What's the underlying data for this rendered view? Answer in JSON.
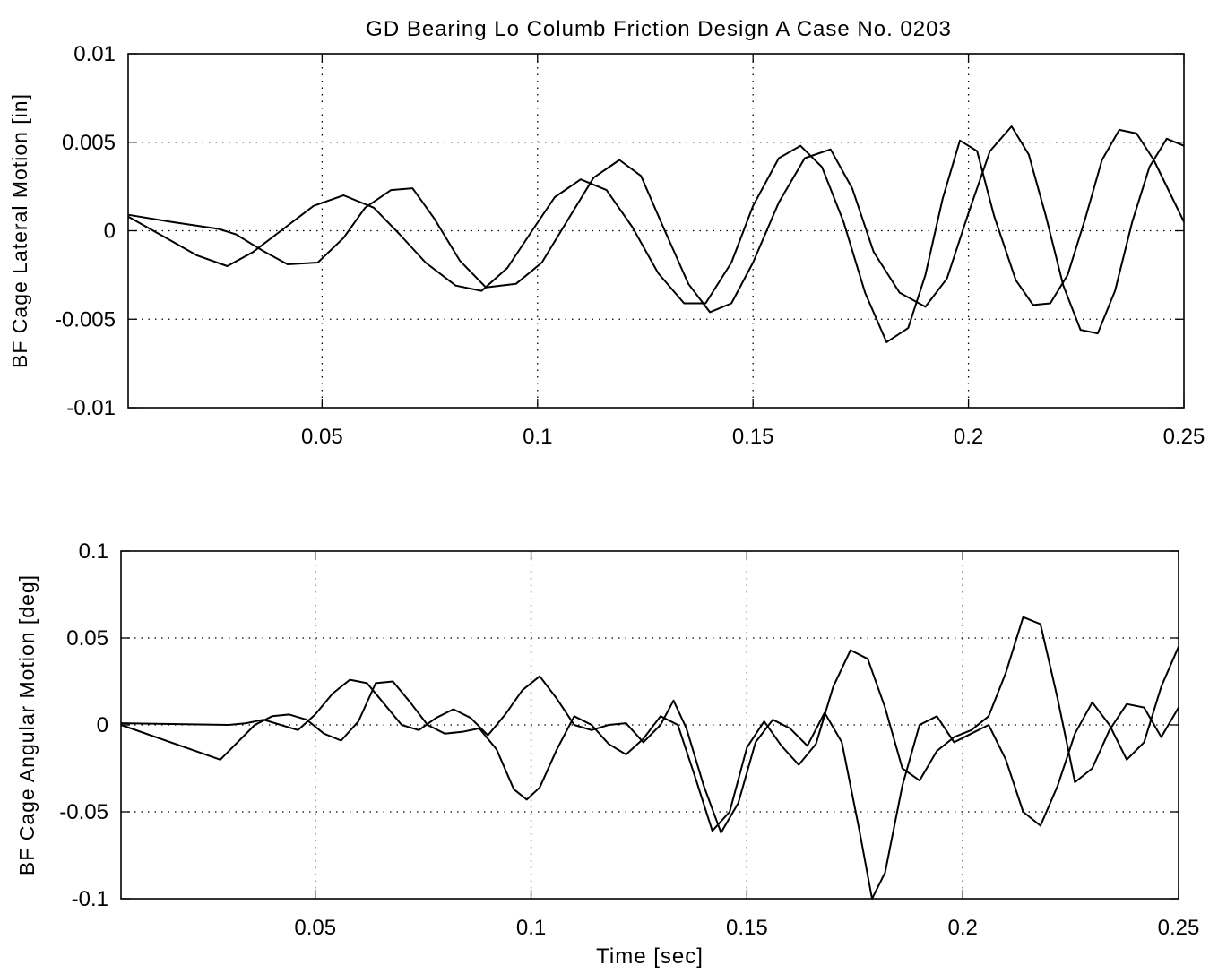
{
  "figure_title": "GD Bearing Lo Columb Friction Design A Case No. 0203",
  "chart_data": [
    {
      "type": "line",
      "title": "GD Bearing Lo Columb Friction Design A Case No. 0203",
      "xlabel": "",
      "ylabel": "BF Cage Lateral Motion [in]",
      "xlim": [
        0.005,
        0.25
      ],
      "ylim": [
        -0.01,
        0.01
      ],
      "x_ticks": [
        0.05,
        0.1,
        0.15,
        0.2,
        0.25
      ],
      "x_tick_labels": [
        "0.05",
        "0.1",
        "0.15",
        "0.2",
        "0.25"
      ],
      "y_ticks": [
        -0.01,
        -0.005,
        0,
        0.005,
        0.01
      ],
      "y_tick_labels": [
        "-0.01",
        "-0.005",
        "0",
        "0.005",
        "0.01"
      ],
      "grid": true,
      "series": [
        {
          "x": [
            0.005,
            0.013,
            0.021,
            0.028,
            0.034,
            0.041,
            0.048,
            0.055,
            0.062,
            0.068,
            0.074,
            0.081,
            0.087,
            0.093,
            0.099,
            0.104,
            0.11,
            0.116,
            0.122,
            0.128,
            0.134,
            0.139,
            0.145,
            0.15,
            0.156,
            0.161,
            0.166,
            0.171,
            0.176,
            0.181,
            0.186,
            0.19,
            0.194,
            0.198,
            0.202,
            0.206,
            0.211,
            0.215,
            0.219,
            0.223,
            0.227,
            0.231,
            0.235,
            0.239,
            0.243,
            0.247,
            0.25
          ],
          "y": [
            0.0008,
            -0.0003,
            -0.0014,
            -0.002,
            -0.0012,
            0.0001,
            0.0014,
            0.002,
            0.0013,
            -0.0002,
            -0.0018,
            -0.0031,
            -0.0034,
            -0.0021,
            0.0001,
            0.0019,
            0.0029,
            0.0023,
            0.0002,
            -0.0024,
            -0.0041,
            -0.0041,
            -0.0018,
            0.0014,
            0.0041,
            0.0048,
            0.0036,
            0.0005,
            -0.0035,
            -0.0063,
            -0.0055,
            -0.0025,
            0.0018,
            0.0051,
            0.0045,
            0.0008,
            -0.0028,
            -0.0042,
            -0.0041,
            -0.0025,
            0.0006,
            0.004,
            0.0057,
            0.0055,
            0.004,
            0.002,
            0.0005
          ]
        },
        {
          "x": [
            0.005,
            0.015,
            0.026,
            0.03,
            0.036,
            0.042,
            0.049,
            0.055,
            0.06,
            0.066,
            0.071,
            0.076,
            0.082,
            0.088,
            0.095,
            0.101,
            0.107,
            0.113,
            0.119,
            0.124,
            0.129,
            0.135,
            0.14,
            0.145,
            0.15,
            0.156,
            0.162,
            0.168,
            0.173,
            0.178,
            0.184,
            0.19,
            0.195,
            0.2,
            0.205,
            0.21,
            0.214,
            0.218,
            0.222,
            0.226,
            0.23,
            0.234,
            0.238,
            0.242,
            0.246,
            0.25
          ],
          "y": [
            0.0009,
            0.0005,
            0.0001,
            -0.0002,
            -0.0011,
            -0.0019,
            -0.0018,
            -0.0004,
            0.0013,
            0.0023,
            0.0024,
            0.0007,
            -0.0017,
            -0.0032,
            -0.003,
            -0.0018,
            0.0006,
            0.003,
            0.004,
            0.0031,
            0.0003,
            -0.003,
            -0.0046,
            -0.0041,
            -0.0018,
            0.0016,
            0.0041,
            0.0046,
            0.0024,
            -0.0012,
            -0.0035,
            -0.0043,
            -0.0027,
            0.001,
            0.0045,
            0.0059,
            0.0043,
            0.0008,
            -0.0031,
            -0.0056,
            -0.0058,
            -0.0034,
            0.0005,
            0.0036,
            0.0052,
            0.0048
          ]
        }
      ]
    },
    {
      "type": "line",
      "title": "",
      "xlabel": "Time [sec]",
      "ylabel": "BF Cage Angular Motion [deg]",
      "xlim": [
        0.005,
        0.25
      ],
      "ylim": [
        -0.1,
        0.1
      ],
      "x_ticks": [
        0.05,
        0.1,
        0.15,
        0.2,
        0.25
      ],
      "x_tick_labels": [
        "0.05",
        "0.1",
        "0.15",
        "0.2",
        "0.25"
      ],
      "y_ticks": [
        -0.1,
        -0.05,
        0,
        0.05,
        0.1
      ],
      "y_tick_labels": [
        "-0.1",
        "-0.05",
        "0",
        "0.05",
        "0.1"
      ],
      "grid": true,
      "series": [
        {
          "x": [
            0.005,
            0.028,
            0.032,
            0.036,
            0.04,
            0.044,
            0.048,
            0.052,
            0.056,
            0.06,
            0.064,
            0.068,
            0.072,
            0.076,
            0.08,
            0.084,
            0.088,
            0.092,
            0.096,
            0.099,
            0.102,
            0.106,
            0.11,
            0.114,
            0.118,
            0.122,
            0.126,
            0.13,
            0.134,
            0.138,
            0.142,
            0.146,
            0.15,
            0.154,
            0.158,
            0.162,
            0.166,
            0.17,
            0.174,
            0.178,
            0.182,
            0.186,
            0.19,
            0.194,
            0.198,
            0.202,
            0.206,
            0.21,
            0.214,
            0.218,
            0.222,
            0.226,
            0.23,
            0.234,
            0.238,
            0.242,
            0.246,
            0.25
          ],
          "y": [
            0,
            -0.02,
            -0.01,
            0.0,
            0.005,
            0.006,
            0.003,
            -0.005,
            -0.009,
            0.002,
            0.024,
            0.025,
            0.013,
            0.0,
            -0.005,
            -0.004,
            -0.002,
            -0.014,
            -0.037,
            -0.043,
            -0.036,
            -0.014,
            0.005,
            0.0,
            -0.011,
            -0.017,
            -0.008,
            0.005,
            0.0,
            -0.03,
            -0.061,
            -0.05,
            -0.013,
            0.002,
            -0.012,
            -0.023,
            -0.011,
            0.022,
            0.043,
            0.038,
            0.01,
            -0.025,
            -0.032,
            -0.015,
            -0.007,
            -0.003,
            0.005,
            0.03,
            0.062,
            0.058,
            0.015,
            -0.033,
            -0.025,
            -0.003,
            0.012,
            0.01,
            -0.007,
            0.01
          ]
        },
        {
          "x": [
            0.005,
            0.03,
            0.034,
            0.038,
            0.042,
            0.046,
            0.05,
            0.054,
            0.058,
            0.062,
            0.066,
            0.07,
            0.074,
            0.078,
            0.082,
            0.086,
            0.09,
            0.094,
            0.098,
            0.102,
            0.106,
            0.11,
            0.114,
            0.118,
            0.122,
            0.126,
            0.13,
            0.133,
            0.136,
            0.14,
            0.144,
            0.148,
            0.152,
            0.156,
            0.16,
            0.164,
            0.168,
            0.172,
            0.176,
            0.179,
            0.182,
            0.186,
            0.19,
            0.194,
            0.198,
            0.202,
            0.206,
            0.21,
            0.214,
            0.218,
            0.222,
            0.226,
            0.23,
            0.234,
            0.238,
            0.242,
            0.246,
            0.25
          ],
          "y": [
            0.001,
            0.0,
            0.001,
            0.003,
            0.0,
            -0.003,
            0.006,
            0.018,
            0.026,
            0.024,
            0.012,
            0.0,
            -0.003,
            0.004,
            0.009,
            0.004,
            -0.006,
            0.006,
            0.02,
            0.028,
            0.015,
            0.0,
            -0.003,
            0.0,
            0.001,
            -0.01,
            0.0,
            0.014,
            -0.002,
            -0.035,
            -0.062,
            -0.045,
            -0.01,
            0.003,
            -0.002,
            -0.012,
            0.007,
            -0.01,
            -0.06,
            -0.1,
            -0.085,
            -0.035,
            0.0,
            0.005,
            -0.01,
            -0.005,
            0.0,
            -0.02,
            -0.05,
            -0.058,
            -0.035,
            -0.005,
            0.013,
            0.0,
            -0.02,
            -0.01,
            0.022,
            0.045
          ]
        }
      ]
    }
  ]
}
